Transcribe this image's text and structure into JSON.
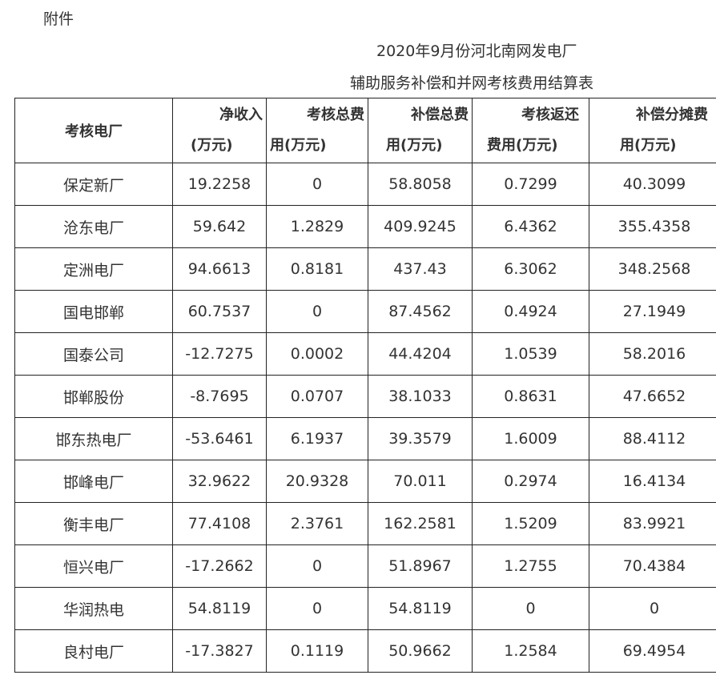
{
  "attachment_label": "附件",
  "title_line1": "2020年9月份河北南网发电厂",
  "title_line2": "辅助服务补偿和并网考核费用结算表",
  "table": {
    "first_header": "考核电厂",
    "headers": [
      {
        "line1": "净收入",
        "line2": "(万元)"
      },
      {
        "line1": "考核总费",
        "line2": "用(万元)"
      },
      {
        "line1": "补偿总费",
        "line2": "用(万元)"
      },
      {
        "line1": "考核返还",
        "line2": "费用(万元)"
      },
      {
        "line1": "补偿分摊费",
        "line2": "用(万元)"
      }
    ],
    "rows": [
      [
        "保定新厂",
        "19.2258",
        "0",
        "58.8058",
        "0.7299",
        "40.3099"
      ],
      [
        "沧东电厂",
        "59.642",
        "1.2829",
        "409.9245",
        "6.4362",
        "355.4358"
      ],
      [
        "定洲电厂",
        "94.6613",
        "0.8181",
        "437.43",
        "6.3062",
        "348.2568"
      ],
      [
        "国电邯郸",
        "60.7537",
        "0",
        "87.4562",
        "0.4924",
        "27.1949"
      ],
      [
        "国泰公司",
        "-12.7275",
        "0.0002",
        "44.4204",
        "1.0539",
        "58.2016"
      ],
      [
        "邯郸股份",
        "-8.7695",
        "0.0707",
        "38.1033",
        "0.8631",
        "47.6652"
      ],
      [
        "邯东热电厂",
        "-53.6461",
        "6.1937",
        "39.3579",
        "1.6009",
        "88.4112"
      ],
      [
        "邯峰电厂",
        "32.9622",
        "20.9328",
        "70.011",
        "0.2974",
        "16.4134"
      ],
      [
        "衡丰电厂",
        "77.4108",
        "2.3761",
        "162.2581",
        "1.5209",
        "83.9921"
      ],
      [
        "恒兴电厂",
        "-17.2662",
        "0",
        "51.8967",
        "1.2755",
        "70.4384"
      ],
      [
        "华润热电",
        "54.8119",
        "0",
        "54.8119",
        "0",
        "0"
      ],
      [
        "良村电厂",
        "-17.3827",
        "0.1119",
        "50.9662",
        "1.2584",
        "69.4954"
      ]
    ]
  }
}
